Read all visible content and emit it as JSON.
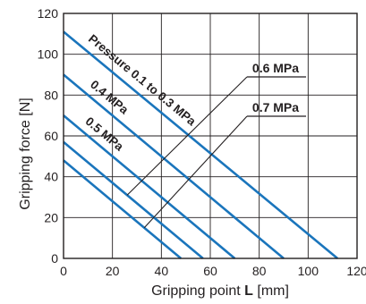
{
  "chart_data": {
    "type": "line",
    "xlabel_prefix": "Gripping point ",
    "xlabel_var": "L",
    "xlabel_unit": " [mm]",
    "ylabel": "Gripping force [N]",
    "xlim": [
      0,
      120
    ],
    "ylim": [
      0,
      120
    ],
    "xticks": [
      0,
      20,
      40,
      60,
      80,
      100,
      120
    ],
    "yticks": [
      0,
      20,
      40,
      60,
      80,
      100,
      120
    ],
    "grid": true,
    "series": [
      {
        "name": "Pressure 0.1 to 0.3 MPa",
        "x": [
          0,
          112
        ],
        "y": [
          111,
          0
        ]
      },
      {
        "name": "0.4 MPa",
        "x": [
          0,
          90
        ],
        "y": [
          90,
          0
        ]
      },
      {
        "name": "0.5 MPa",
        "x": [
          0,
          70
        ],
        "y": [
          70,
          0
        ]
      },
      {
        "name": "0.6 MPa",
        "x": [
          0,
          57
        ],
        "y": [
          57,
          0
        ]
      },
      {
        "name": "0.7 MPa",
        "x": [
          0,
          48
        ],
        "y": [
          48,
          0
        ]
      }
    ],
    "annotations": [
      {
        "text": "Pressure 0.1 to 0.3 MPa",
        "target": "Pressure 0.1 to 0.3 MPa",
        "style": "inline"
      },
      {
        "text": "0.4 MPa",
        "target": "0.4 MPa",
        "style": "inline"
      },
      {
        "text": "0.5 MPa",
        "target": "0.5 MPa",
        "style": "inline"
      },
      {
        "text": "0.6 MPa",
        "target": "0.6 MPa",
        "style": "callout"
      },
      {
        "text": "0.7 MPa",
        "target": "0.7 MPa",
        "style": "callout"
      }
    ],
    "colors": {
      "series": "#1a75bc",
      "grid": "#231f20",
      "frame": "#231f20",
      "leader": "#231f20",
      "text": "#231f20"
    }
  }
}
